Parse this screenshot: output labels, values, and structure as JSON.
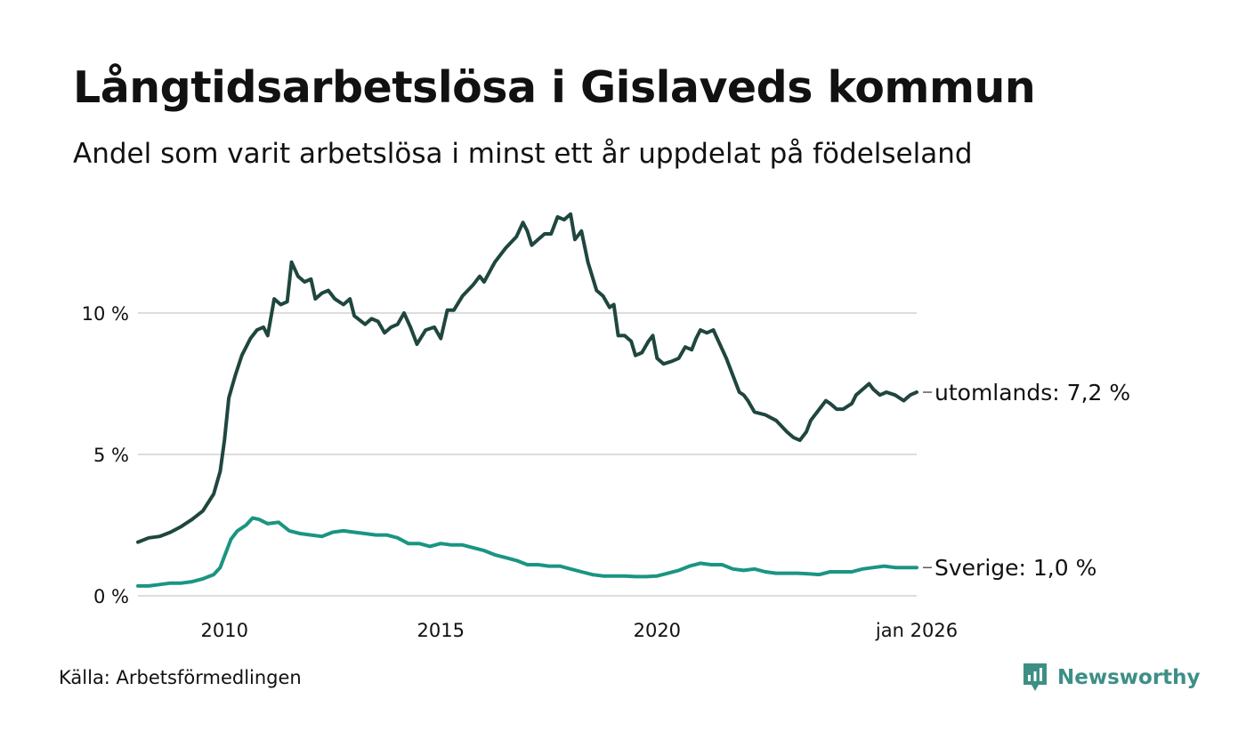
{
  "header": {
    "title": "Långtidsarbetslösa i Gislaveds kommun",
    "subtitle": "Andel som varit arbetslösa i minst ett år uppdelat på födelseland"
  },
  "footer": {
    "source": "Källa: Arbetsförmedlingen",
    "brand": "Newsworthy"
  },
  "colors": {
    "utomlands": "#1f463f",
    "sverige": "#1a9582",
    "grid": "#dddddd",
    "brand": "#3d8f86"
  },
  "chart_data": {
    "type": "line",
    "title": "Långtidsarbetslösa i Gislaveds kommun",
    "subtitle": "Andel som varit arbetslösa i minst ett år uppdelat på födelseland",
    "xlabel": "",
    "ylabel": "",
    "xlim": [
      2008.0,
      2026.0
    ],
    "ylim": [
      0,
      13.5
    ],
    "grid": true,
    "yticks": [
      {
        "value": 0,
        "label": "0 %"
      },
      {
        "value": 5,
        "label": "5 %"
      },
      {
        "value": 10,
        "label": "10 %"
      }
    ],
    "xticks": [
      {
        "value": 2010,
        "label": "2010"
      },
      {
        "value": 2015,
        "label": "2015"
      },
      {
        "value": 2020,
        "label": "2020"
      },
      {
        "value": 2026.0,
        "label": "jan 2026"
      }
    ],
    "series": [
      {
        "name": "utomlands",
        "end_label": "utomlands: 7,2 %",
        "color": "#1f463f",
        "points": [
          [
            2008.0,
            1.9
          ],
          [
            2008.25,
            2.05
          ],
          [
            2008.5,
            2.1
          ],
          [
            2008.75,
            2.25
          ],
          [
            2009.0,
            2.45
          ],
          [
            2009.25,
            2.7
          ],
          [
            2009.5,
            3.0
          ],
          [
            2009.75,
            3.6
          ],
          [
            2009.9,
            4.4
          ],
          [
            2010.0,
            5.5
          ],
          [
            2010.1,
            7.0
          ],
          [
            2010.25,
            7.8
          ],
          [
            2010.4,
            8.5
          ],
          [
            2010.6,
            9.1
          ],
          [
            2010.75,
            9.4
          ],
          [
            2010.9,
            9.5
          ],
          [
            2011.0,
            9.2
          ],
          [
            2011.15,
            10.5
          ],
          [
            2011.3,
            10.3
          ],
          [
            2011.45,
            10.4
          ],
          [
            2011.55,
            11.8
          ],
          [
            2011.7,
            11.3
          ],
          [
            2011.85,
            11.1
          ],
          [
            2012.0,
            11.2
          ],
          [
            2012.1,
            10.5
          ],
          [
            2012.25,
            10.7
          ],
          [
            2012.4,
            10.8
          ],
          [
            2012.55,
            10.5
          ],
          [
            2012.75,
            10.3
          ],
          [
            2012.9,
            10.5
          ],
          [
            2013.0,
            9.9
          ],
          [
            2013.25,
            9.6
          ],
          [
            2013.4,
            9.8
          ],
          [
            2013.55,
            9.7
          ],
          [
            2013.7,
            9.3
          ],
          [
            2013.85,
            9.5
          ],
          [
            2014.0,
            9.6
          ],
          [
            2014.15,
            10.0
          ],
          [
            2014.3,
            9.5
          ],
          [
            2014.45,
            8.9
          ],
          [
            2014.65,
            9.4
          ],
          [
            2014.85,
            9.5
          ],
          [
            2015.0,
            9.1
          ],
          [
            2015.15,
            10.1
          ],
          [
            2015.3,
            10.1
          ],
          [
            2015.5,
            10.6
          ],
          [
            2015.75,
            11.0
          ],
          [
            2015.9,
            11.3
          ],
          [
            2016.0,
            11.1
          ],
          [
            2016.25,
            11.8
          ],
          [
            2016.5,
            12.3
          ],
          [
            2016.75,
            12.7
          ],
          [
            2016.9,
            13.2
          ],
          [
            2017.0,
            12.9
          ],
          [
            2017.1,
            12.4
          ],
          [
            2017.25,
            12.6
          ],
          [
            2017.4,
            12.8
          ],
          [
            2017.55,
            12.8
          ],
          [
            2017.7,
            13.4
          ],
          [
            2017.85,
            13.3
          ],
          [
            2018.0,
            13.5
          ],
          [
            2018.1,
            12.6
          ],
          [
            2018.25,
            12.9
          ],
          [
            2018.4,
            11.8
          ],
          [
            2018.6,
            10.8
          ],
          [
            2018.75,
            10.6
          ],
          [
            2018.9,
            10.2
          ],
          [
            2019.0,
            10.3
          ],
          [
            2019.1,
            9.2
          ],
          [
            2019.25,
            9.2
          ],
          [
            2019.4,
            9.0
          ],
          [
            2019.5,
            8.5
          ],
          [
            2019.65,
            8.6
          ],
          [
            2019.8,
            9.0
          ],
          [
            2019.9,
            9.2
          ],
          [
            2020.0,
            8.4
          ],
          [
            2020.15,
            8.2
          ],
          [
            2020.35,
            8.3
          ],
          [
            2020.5,
            8.4
          ],
          [
            2020.65,
            8.8
          ],
          [
            2020.8,
            8.7
          ],
          [
            2020.9,
            9.1
          ],
          [
            2021.0,
            9.4
          ],
          [
            2021.15,
            9.3
          ],
          [
            2021.3,
            9.4
          ],
          [
            2021.45,
            8.9
          ],
          [
            2021.6,
            8.4
          ],
          [
            2021.75,
            7.8
          ],
          [
            2021.9,
            7.2
          ],
          [
            2022.0,
            7.1
          ],
          [
            2022.1,
            6.9
          ],
          [
            2022.25,
            6.5
          ],
          [
            2022.5,
            6.4
          ],
          [
            2022.75,
            6.2
          ],
          [
            2023.0,
            5.8
          ],
          [
            2023.15,
            5.6
          ],
          [
            2023.3,
            5.5
          ],
          [
            2023.45,
            5.8
          ],
          [
            2023.55,
            6.2
          ],
          [
            2023.75,
            6.6
          ],
          [
            2023.9,
            6.9
          ],
          [
            2024.0,
            6.8
          ],
          [
            2024.15,
            6.6
          ],
          [
            2024.3,
            6.6
          ],
          [
            2024.5,
            6.8
          ],
          [
            2024.6,
            7.1
          ],
          [
            2024.75,
            7.3
          ],
          [
            2024.9,
            7.5
          ],
          [
            2025.0,
            7.3
          ],
          [
            2025.15,
            7.1
          ],
          [
            2025.3,
            7.2
          ],
          [
            2025.5,
            7.1
          ],
          [
            2025.7,
            6.9
          ],
          [
            2025.85,
            7.1
          ],
          [
            2026.0,
            7.2
          ]
        ]
      },
      {
        "name": "Sverige",
        "end_label": "Sverige: 1,0 %",
        "color": "#1a9582",
        "points": [
          [
            2008.0,
            0.35
          ],
          [
            2008.25,
            0.35
          ],
          [
            2008.5,
            0.4
          ],
          [
            2008.75,
            0.45
          ],
          [
            2009.0,
            0.45
          ],
          [
            2009.25,
            0.5
          ],
          [
            2009.5,
            0.6
          ],
          [
            2009.75,
            0.75
          ],
          [
            2009.9,
            1.0
          ],
          [
            2010.0,
            1.4
          ],
          [
            2010.15,
            2.0
          ],
          [
            2010.3,
            2.3
          ],
          [
            2010.5,
            2.5
          ],
          [
            2010.65,
            2.75
          ],
          [
            2010.8,
            2.7
          ],
          [
            2011.0,
            2.55
          ],
          [
            2011.25,
            2.6
          ],
          [
            2011.5,
            2.3
          ],
          [
            2011.75,
            2.2
          ],
          [
            2012.0,
            2.15
          ],
          [
            2012.25,
            2.1
          ],
          [
            2012.5,
            2.25
          ],
          [
            2012.75,
            2.3
          ],
          [
            2013.0,
            2.25
          ],
          [
            2013.25,
            2.2
          ],
          [
            2013.5,
            2.15
          ],
          [
            2013.75,
            2.15
          ],
          [
            2014.0,
            2.05
          ],
          [
            2014.25,
            1.85
          ],
          [
            2014.5,
            1.85
          ],
          [
            2014.75,
            1.75
          ],
          [
            2015.0,
            1.85
          ],
          [
            2015.25,
            1.8
          ],
          [
            2015.5,
            1.8
          ],
          [
            2015.75,
            1.7
          ],
          [
            2016.0,
            1.6
          ],
          [
            2016.25,
            1.45
          ],
          [
            2016.5,
            1.35
          ],
          [
            2016.75,
            1.25
          ],
          [
            2017.0,
            1.1
          ],
          [
            2017.25,
            1.1
          ],
          [
            2017.5,
            1.05
          ],
          [
            2017.75,
            1.05
          ],
          [
            2018.0,
            0.95
          ],
          [
            2018.25,
            0.85
          ],
          [
            2018.5,
            0.75
          ],
          [
            2018.75,
            0.7
          ],
          [
            2019.0,
            0.7
          ],
          [
            2019.25,
            0.7
          ],
          [
            2019.5,
            0.68
          ],
          [
            2019.75,
            0.68
          ],
          [
            2020.0,
            0.7
          ],
          [
            2020.25,
            0.8
          ],
          [
            2020.5,
            0.9
          ],
          [
            2020.75,
            1.05
          ],
          [
            2021.0,
            1.15
          ],
          [
            2021.25,
            1.1
          ],
          [
            2021.5,
            1.1
          ],
          [
            2021.75,
            0.95
          ],
          [
            2022.0,
            0.9
          ],
          [
            2022.25,
            0.95
          ],
          [
            2022.5,
            0.85
          ],
          [
            2022.75,
            0.8
          ],
          [
            2023.0,
            0.8
          ],
          [
            2023.25,
            0.8
          ],
          [
            2023.5,
            0.78
          ],
          [
            2023.75,
            0.75
          ],
          [
            2024.0,
            0.85
          ],
          [
            2024.25,
            0.85
          ],
          [
            2024.5,
            0.85
          ],
          [
            2024.75,
            0.95
          ],
          [
            2025.0,
            1.0
          ],
          [
            2025.25,
            1.05
          ],
          [
            2025.5,
            1.0
          ],
          [
            2025.75,
            1.0
          ],
          [
            2026.0,
            1.0
          ]
        ]
      }
    ]
  }
}
